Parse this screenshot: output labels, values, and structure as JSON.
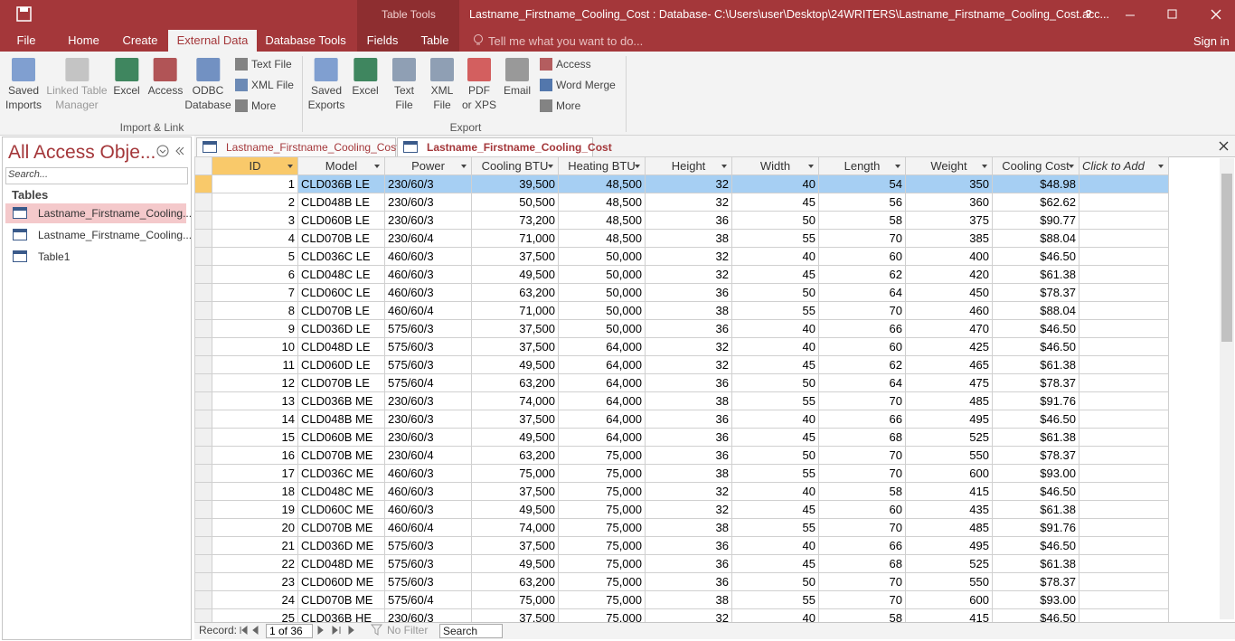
{
  "title_bar": {
    "contextual_tab": "Table Tools",
    "title": "Lastname_Firstname_Cooling_Cost : Database- C:\\Users\\user\\Desktop\\24WRITERS\\Lastname_Firstname_Cooling_Cost.acc...",
    "help": "?"
  },
  "ribbon_tabs": [
    "File",
    "Home",
    "Create",
    "External Data",
    "Database Tools",
    "Fields",
    "Table"
  ],
  "tell_me": "Tell me what you want to do...",
  "sign_in": "Sign in",
  "ribbon": {
    "groups": [
      {
        "name": "Import & Link",
        "buttons": [
          [
            "Saved",
            "Imports"
          ],
          [
            "Linked Table",
            "Manager"
          ],
          [
            "Excel"
          ],
          [
            "Access"
          ],
          [
            "ODBC",
            "Database"
          ]
        ],
        "small_buttons": [
          "Text File",
          "XML File",
          "More"
        ]
      },
      {
        "name": "Export",
        "buttons": [
          [
            "Saved",
            "Exports"
          ],
          [
            "Excel"
          ],
          [
            "Text",
            "File"
          ],
          [
            "XML",
            "File"
          ],
          [
            "PDF",
            "or XPS"
          ],
          [
            "Email"
          ]
        ],
        "small_buttons": [
          "Access",
          "Word Merge",
          "More"
        ]
      }
    ]
  },
  "nav_pane": {
    "title": "All Access Obje...",
    "search": "Search...",
    "section": "Tables",
    "items": [
      "Lastname_Firstname_Cooling...",
      "Lastname_Firstname_Cooling...",
      "Table1"
    ]
  },
  "document_tabs": [
    "Lastname_Firstname_Cooling_Costs",
    "Lastname_Firstname_Cooling_Cost"
  ],
  "table": {
    "columns": [
      "ID",
      "Model",
      "Power",
      "Cooling BTU",
      "Heating BTU",
      "Height",
      "Width",
      "Length",
      "Weight",
      "Cooling Cost",
      "Click to Add"
    ],
    "rows": [
      [
        "1",
        "CLD036B LE",
        "230/60/3",
        "39,500",
        "48,500",
        "32",
        "40",
        "54",
        "350",
        "$48.98"
      ],
      [
        "2",
        "CLD048B LE",
        "230/60/3",
        "50,500",
        "48,500",
        "32",
        "45",
        "56",
        "360",
        "$62.62"
      ],
      [
        "3",
        "CLD060B LE",
        "230/60/3",
        "73,200",
        "48,500",
        "36",
        "50",
        "58",
        "375",
        "$90.77"
      ],
      [
        "4",
        "CLD070B LE",
        "230/60/4",
        "71,000",
        "48,500",
        "38",
        "55",
        "70",
        "385",
        "$88.04"
      ],
      [
        "5",
        "CLD036C LE",
        "460/60/3",
        "37,500",
        "50,000",
        "32",
        "40",
        "60",
        "400",
        "$46.50"
      ],
      [
        "6",
        "CLD048C LE",
        "460/60/3",
        "49,500",
        "50,000",
        "32",
        "45",
        "62",
        "420",
        "$61.38"
      ],
      [
        "7",
        "CLD060C LE",
        "460/60/3",
        "63,200",
        "50,000",
        "36",
        "50",
        "64",
        "450",
        "$78.37"
      ],
      [
        "8",
        "CLD070B LE",
        "460/60/4",
        "71,000",
        "50,000",
        "38",
        "55",
        "70",
        "460",
        "$88.04"
      ],
      [
        "9",
        "CLD036D LE",
        "575/60/3",
        "37,500",
        "50,000",
        "36",
        "40",
        "66",
        "470",
        "$46.50"
      ],
      [
        "10",
        "CLD048D LE",
        "575/60/3",
        "37,500",
        "64,000",
        "32",
        "40",
        "60",
        "425",
        "$46.50"
      ],
      [
        "11",
        "CLD060D LE",
        "575/60/3",
        "49,500",
        "64,000",
        "32",
        "45",
        "62",
        "465",
        "$61.38"
      ],
      [
        "12",
        "CLD070B LE",
        "575/60/4",
        "63,200",
        "64,000",
        "36",
        "50",
        "64",
        "475",
        "$78.37"
      ],
      [
        "13",
        "CLD036B ME",
        "230/60/3",
        "74,000",
        "64,000",
        "38",
        "55",
        "70",
        "485",
        "$91.76"
      ],
      [
        "14",
        "CLD048B ME",
        "230/60/3",
        "37,500",
        "64,000",
        "36",
        "40",
        "66",
        "495",
        "$46.50"
      ],
      [
        "15",
        "CLD060B ME",
        "230/60/3",
        "49,500",
        "64,000",
        "36",
        "45",
        "68",
        "525",
        "$61.38"
      ],
      [
        "16",
        "CLD070B ME",
        "230/60/4",
        "63,200",
        "75,000",
        "36",
        "50",
        "70",
        "550",
        "$78.37"
      ],
      [
        "17",
        "CLD036C ME",
        "460/60/3",
        "75,000",
        "75,000",
        "38",
        "55",
        "70",
        "600",
        "$93.00"
      ],
      [
        "18",
        "CLD048C ME",
        "460/60/3",
        "37,500",
        "75,000",
        "32",
        "40",
        "58",
        "415",
        "$46.50"
      ],
      [
        "19",
        "CLD060C ME",
        "460/60/3",
        "49,500",
        "75,000",
        "32",
        "45",
        "60",
        "435",
        "$61.38"
      ],
      [
        "20",
        "CLD070B ME",
        "460/60/4",
        "74,000",
        "75,000",
        "38",
        "55",
        "70",
        "485",
        "$91.76"
      ],
      [
        "21",
        "CLD036D ME",
        "575/60/3",
        "37,500",
        "75,000",
        "36",
        "40",
        "66",
        "495",
        "$46.50"
      ],
      [
        "22",
        "CLD048D ME",
        "575/60/3",
        "49,500",
        "75,000",
        "36",
        "45",
        "68",
        "525",
        "$61.38"
      ],
      [
        "23",
        "CLD060D ME",
        "575/60/3",
        "63,200",
        "75,000",
        "36",
        "50",
        "70",
        "550",
        "$78.37"
      ],
      [
        "24",
        "CLD070B ME",
        "575/60/4",
        "75,000",
        "75,000",
        "38",
        "55",
        "70",
        "600",
        "$93.00"
      ],
      [
        "25",
        "CLD036B HE",
        "230/60/3",
        "37,500",
        "75,000",
        "32",
        "40",
        "58",
        "415",
        "$46.50"
      ]
    ]
  },
  "record_nav": {
    "label": "Record:",
    "position": "1 of 36",
    "filter": "No Filter",
    "search": "Search"
  }
}
